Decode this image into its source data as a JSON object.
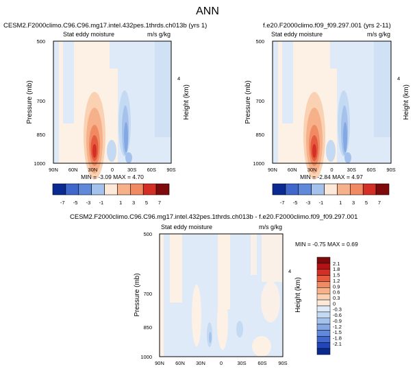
{
  "figure": {
    "title": "ANN"
  },
  "colors": {
    "warm": [
      "#fde9d9",
      "#fad1b3",
      "#f6b08a",
      "#f08a62",
      "#e55b3f",
      "#d32f25",
      "#b21416",
      "#7f0a0c"
    ],
    "cool": [
      "#deeaf8",
      "#c4d9f2",
      "#a4c2ec",
      "#84a8e4",
      "#6189da",
      "#3f67cc",
      "#2246b8",
      "#0a2a91"
    ]
  },
  "chart_data": [
    {
      "id": "p1",
      "type": "heatmap",
      "title": "CESM2.F2000climo.C96.C96.mg17.intel.432pes.1thrds.ch013b (yrs 1)",
      "left_label": "Stat eddy moisture",
      "right_label": "m/s g/kg",
      "ylabel": "Pressure (mb)",
      "ylabel_right": "Height (km)",
      "x_ticks": [
        "90N",
        "60N",
        "30N",
        "0",
        "30S",
        "60S",
        "90S"
      ],
      "y_ticks": [
        "500",
        "700",
        "850",
        "1000"
      ],
      "y_ticks_right": [
        "4"
      ],
      "stats": {
        "min_label": "MIN =",
        "min": "-3.09",
        "max_label": "MAX =",
        "max": "4.70"
      },
      "colorbar": {
        "orientation": "horizontal",
        "labels": [
          "-7",
          "-5",
          "-3",
          "-1",
          "1",
          "3",
          "5",
          "7"
        ]
      }
    },
    {
      "id": "p2",
      "type": "heatmap",
      "title": "f.e20.F2000climo.f09_f09.297.001 (yrs 2-11)",
      "left_label": "Stat eddy moisture",
      "right_label": "m/s g/kg",
      "ylabel": "Pressure (mb)",
      "ylabel_right": "Height (km)",
      "x_ticks": [
        "90N",
        "60N",
        "30N",
        "0",
        "30S",
        "60S",
        "90S"
      ],
      "y_ticks": [
        "500",
        "700",
        "850",
        "1000"
      ],
      "y_ticks_right": [
        "4"
      ],
      "stats": {
        "min_label": "MIN =",
        "min": "-2.84",
        "max_label": "MAX =",
        "max": "4.97"
      },
      "colorbar": {
        "orientation": "horizontal",
        "labels": [
          "-7",
          "-5",
          "-3",
          "-1",
          "1",
          "3",
          "5",
          "7"
        ]
      }
    },
    {
      "id": "p3",
      "type": "heatmap",
      "title": "CESM2.F2000climo.C96.C96.mg17.intel.432pes.1thrds.ch013b - f.e20.F2000climo.f09_f09.297.001",
      "left_label": "Stat eddy moisture",
      "right_label": "m/s g/kg",
      "ylabel": "Pressure (mb)",
      "ylabel_right": "Height (km)",
      "x_ticks": [
        "90N",
        "60N",
        "30N",
        "0",
        "30S",
        "60S",
        "90S"
      ],
      "y_ticks": [
        "500",
        "700",
        "850",
        "1000"
      ],
      "y_ticks_right": [
        "4"
      ],
      "stats": {
        "min_label": "MIN =",
        "min": "-0.75",
        "max_label": "MAX =",
        "max": "0.69"
      },
      "colorbar": {
        "orientation": "vertical",
        "labels": [
          "2.1",
          "1.8",
          "1.5",
          "1.2",
          "0.9",
          "0.6",
          "0.3",
          "0",
          "-0.3",
          "-0.6",
          "-0.9",
          "-1.2",
          "-1.5",
          "-1.8",
          "-2.1"
        ]
      }
    }
  ]
}
